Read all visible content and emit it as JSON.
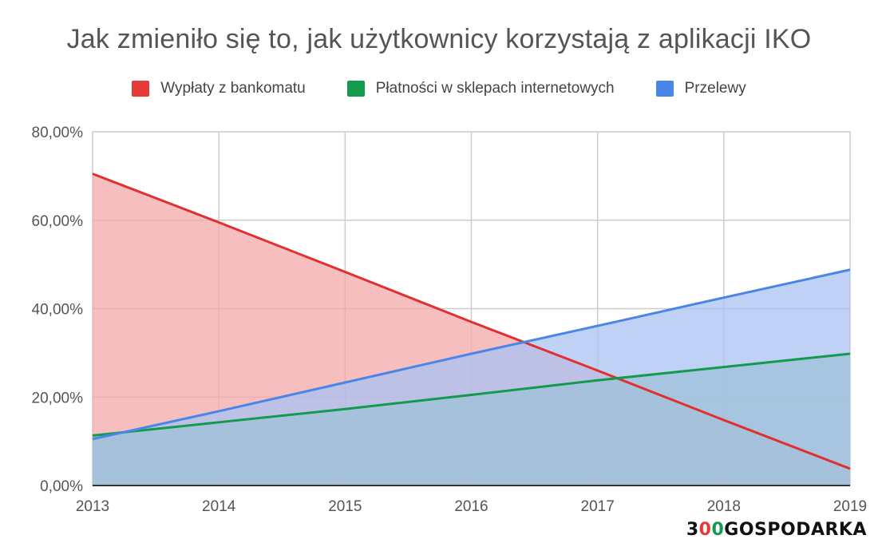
{
  "chart_data": {
    "type": "area",
    "title": "Jak zmieniło się to, jak użytkownicy korzystają z aplikacji IKO",
    "x": [
      "2013",
      "2014",
      "2015",
      "2016",
      "2017",
      "2018",
      "2019"
    ],
    "ylim": [
      0,
      80
    ],
    "yticks": [
      "0,00%",
      "20,00%",
      "40,00%",
      "60,00%",
      "80,00%"
    ],
    "ytick_values": [
      0,
      20,
      40,
      60,
      80
    ],
    "grid": true,
    "legend_position": "top-center",
    "series": [
      {
        "name": "Wypłaty z bankomatu",
        "color": "#e03030",
        "fill": "#f4a8aa",
        "values": [
          70.5,
          59.5,
          48.3,
          37.0,
          26.0,
          14.8,
          3.8
        ]
      },
      {
        "name": "Płatności w sklepach internetowych",
        "color": "#129a4d",
        "fill": "#7fbf8f",
        "values": [
          11.3,
          14.3,
          17.3,
          20.5,
          23.8,
          26.8,
          29.8
        ]
      },
      {
        "name": "Przelewy",
        "color": "#4a86e8",
        "fill": "#a9c2f2",
        "values": [
          10.5,
          16.8,
          23.3,
          29.8,
          36.1,
          42.5,
          48.8
        ]
      }
    ]
  },
  "logo": {
    "part1": "3",
    "part2": "0",
    "part3": "0",
    "part4": "GOSPODARKA"
  }
}
